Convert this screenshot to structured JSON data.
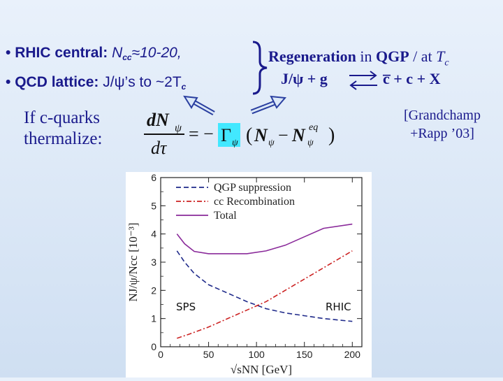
{
  "bullet1": {
    "bullet": "•",
    "prefix": "RHIC central: ",
    "italic": "N",
    "subscript": "cc",
    "suffix": "≈10-20,"
  },
  "bullet2": {
    "bullet": "•",
    "prefix": "QCD lattice: ",
    "mid": "J/ψ’s to ~2T",
    "subscript": "c"
  },
  "regeneration": {
    "bold": "Regeneration",
    "rest": " in ",
    "qgp": "QGP",
    "tail": " / at ",
    "tc": "T",
    "tc_sub": "c"
  },
  "reaction": {
    "left": "J/ψ + g",
    "right": "c̅ + c + X"
  },
  "thermalize": {
    "line1": "If c-quarks",
    "line2": "thermalize:"
  },
  "reference": {
    "line1": "[Grandchamp",
    "line2": "+Rapp ’03]"
  },
  "equation": {
    "numerator": "dNψ",
    "denominator": "dτ",
    "rhs": "= − Γψ (Nψ − Nψeq)"
  },
  "plot_labels": {
    "sps": "SPS",
    "rhic": "RHIC"
  },
  "chart_data": {
    "type": "line",
    "xlabel": "√sNN [GeV]",
    "ylabel": "NJ/ψ/Ncc  [10⁻³]",
    "xlim": [
      0,
      210
    ],
    "ylim": [
      0,
      6
    ],
    "x_ticks": [
      0,
      50,
      100,
      150,
      200
    ],
    "y_ticks": [
      0,
      1,
      2,
      3,
      4,
      5,
      6
    ],
    "legend": [
      "QGP suppression",
      "cc Recombination",
      "Total"
    ],
    "legend_position": "top",
    "series": [
      {
        "name": "QGP suppression",
        "color": "#1f2a8a",
        "dash": "7,4",
        "x": [
          17,
          25,
          35,
          50,
          70,
          90,
          110,
          130,
          150,
          170,
          200
        ],
        "y": [
          3.4,
          3.0,
          2.6,
          2.2,
          1.9,
          1.6,
          1.35,
          1.2,
          1.1,
          1.0,
          0.9
        ]
      },
      {
        "name": "cc Recombination",
        "color": "#cc2222",
        "dash": "7,3,2,3",
        "x": [
          17,
          30,
          50,
          70,
          90,
          110,
          130,
          150,
          170,
          200
        ],
        "y": [
          0.3,
          0.45,
          0.7,
          1.0,
          1.3,
          1.6,
          2.0,
          2.4,
          2.8,
          3.4
        ]
      },
      {
        "name": "Total",
        "color": "#8a2a9a",
        "dash": "",
        "x": [
          17,
          25,
          35,
          50,
          70,
          90,
          110,
          130,
          150,
          170,
          200
        ],
        "y": [
          4.0,
          3.65,
          3.38,
          3.3,
          3.3,
          3.3,
          3.4,
          3.6,
          3.9,
          4.2,
          4.35
        ]
      }
    ]
  }
}
